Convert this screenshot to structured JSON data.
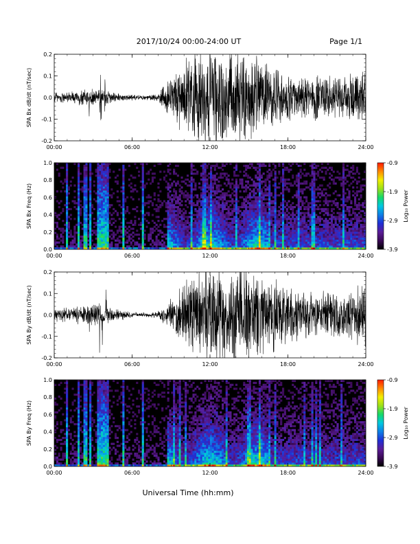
{
  "header": {
    "title": "2017/10/24  00:00-24:00 UT",
    "page": "Page 1/1"
  },
  "footer": {
    "xlabel": "Universal Time (hh:mm)"
  },
  "colors": {
    "trace": "#000000",
    "spectrogram_background": "#000000",
    "colormap": [
      "#000000",
      "#3a0a55",
      "#5b1d98",
      "#1f2fd6",
      "#0e7fe6",
      "#00c8e0",
      "#15d96a",
      "#9be01a",
      "#f2f000",
      "#ff8a00",
      "#ff1a00"
    ]
  },
  "chart_data": [
    {
      "type": "line",
      "panel": "bx-waveform",
      "ylabel": "SPA Bx dB/dt (nT/sec)",
      "xlim": [
        0,
        24
      ],
      "ylim": [
        -0.2,
        0.2
      ],
      "xticks": [
        "00:00",
        "06:00",
        "12:00",
        "18:00",
        "24:00"
      ],
      "yticks": [
        "-0.2",
        "-0.1",
        "0.0",
        "0.1",
        "0.2"
      ],
      "envelope_hours": [
        0,
        1,
        2,
        3,
        4,
        5,
        6,
        7,
        8,
        9,
        10,
        11,
        12,
        13,
        14,
        15,
        16,
        17,
        18,
        19,
        20,
        21,
        22,
        23,
        24
      ],
      "envelope_amplitude": [
        0.03,
        0.03,
        0.04,
        0.05,
        0.04,
        0.02,
        0.015,
        0.012,
        0.02,
        0.12,
        0.2,
        0.25,
        0.25,
        0.25,
        0.25,
        0.22,
        0.2,
        0.15,
        0.12,
        0.13,
        0.12,
        0.12,
        0.11,
        0.13,
        0.15
      ],
      "spikes": [
        {
          "hour": 3.5,
          "amplitude": 0.2
        },
        {
          "hour": 3.6,
          "amplitude": 0.17
        },
        {
          "hour": 2.7,
          "amplitude": 0.12
        },
        {
          "hour": 3.9,
          "amplitude": 0.12
        }
      ]
    },
    {
      "type": "heatmap",
      "panel": "bx-spectrogram",
      "ylabel": "SPA Bx Freq (Hz)",
      "xlim": [
        0,
        24
      ],
      "ylim": [
        0,
        1.0
      ],
      "xticks": [
        "00:00",
        "06:00",
        "12:00",
        "18:00",
        "24:00"
      ],
      "yticks": [
        "0.0",
        "0.2",
        "0.4",
        "0.6",
        "0.8",
        "1.0"
      ],
      "colorbar_label": "Log₁₀ Power",
      "colorbar_range": [
        -3.9,
        -0.9
      ],
      "colorbar_ticks": [
        "-0.9",
        "-1.9",
        "-2.9",
        "-3.9"
      ],
      "onset_hour": 8.7
    },
    {
      "type": "line",
      "panel": "by-waveform",
      "ylabel": "SPA By dB/dt (nT/sec)",
      "xlim": [
        0,
        24
      ],
      "ylim": [
        -0.2,
        0.2
      ],
      "xticks": [
        "00:00",
        "06:00",
        "12:00",
        "18:00",
        "24:00"
      ],
      "yticks": [
        "-0.2",
        "-0.1",
        "0.0",
        "0.1",
        "0.2"
      ],
      "envelope_hours": [
        0,
        1,
        2,
        3,
        4,
        5,
        6,
        7,
        8,
        9,
        10,
        11,
        12,
        13,
        14,
        15,
        16,
        17,
        18,
        19,
        20,
        21,
        22,
        23,
        24
      ],
      "envelope_amplitude": [
        0.03,
        0.04,
        0.05,
        0.06,
        0.05,
        0.03,
        0.015,
        0.012,
        0.02,
        0.08,
        0.15,
        0.25,
        0.25,
        0.25,
        0.25,
        0.25,
        0.22,
        0.2,
        0.16,
        0.12,
        0.11,
        0.12,
        0.12,
        0.13,
        0.18
      ],
      "spikes": [
        {
          "hour": 3.5,
          "amplitude": 0.22
        },
        {
          "hour": 3.7,
          "amplitude": 0.2
        },
        {
          "hour": 2.7,
          "amplitude": 0.15
        },
        {
          "hour": 4.0,
          "amplitude": 0.15
        }
      ]
    },
    {
      "type": "heatmap",
      "panel": "by-spectrogram",
      "ylabel": "SPA By Freq (Hz)",
      "xlim": [
        0,
        24
      ],
      "ylim": [
        0,
        1.0
      ],
      "xticks": [
        "00:00",
        "06:00",
        "12:00",
        "18:00",
        "24:00"
      ],
      "yticks": [
        "0.0",
        "0.2",
        "0.4",
        "0.6",
        "0.8",
        "1.0"
      ],
      "colorbar_label": "Log₁₀ Power",
      "colorbar_range": [
        -3.9,
        -0.9
      ],
      "colorbar_ticks": [
        "-0.9",
        "-1.9",
        "-2.9",
        "-3.9"
      ],
      "onset_hour": 8.7
    }
  ]
}
